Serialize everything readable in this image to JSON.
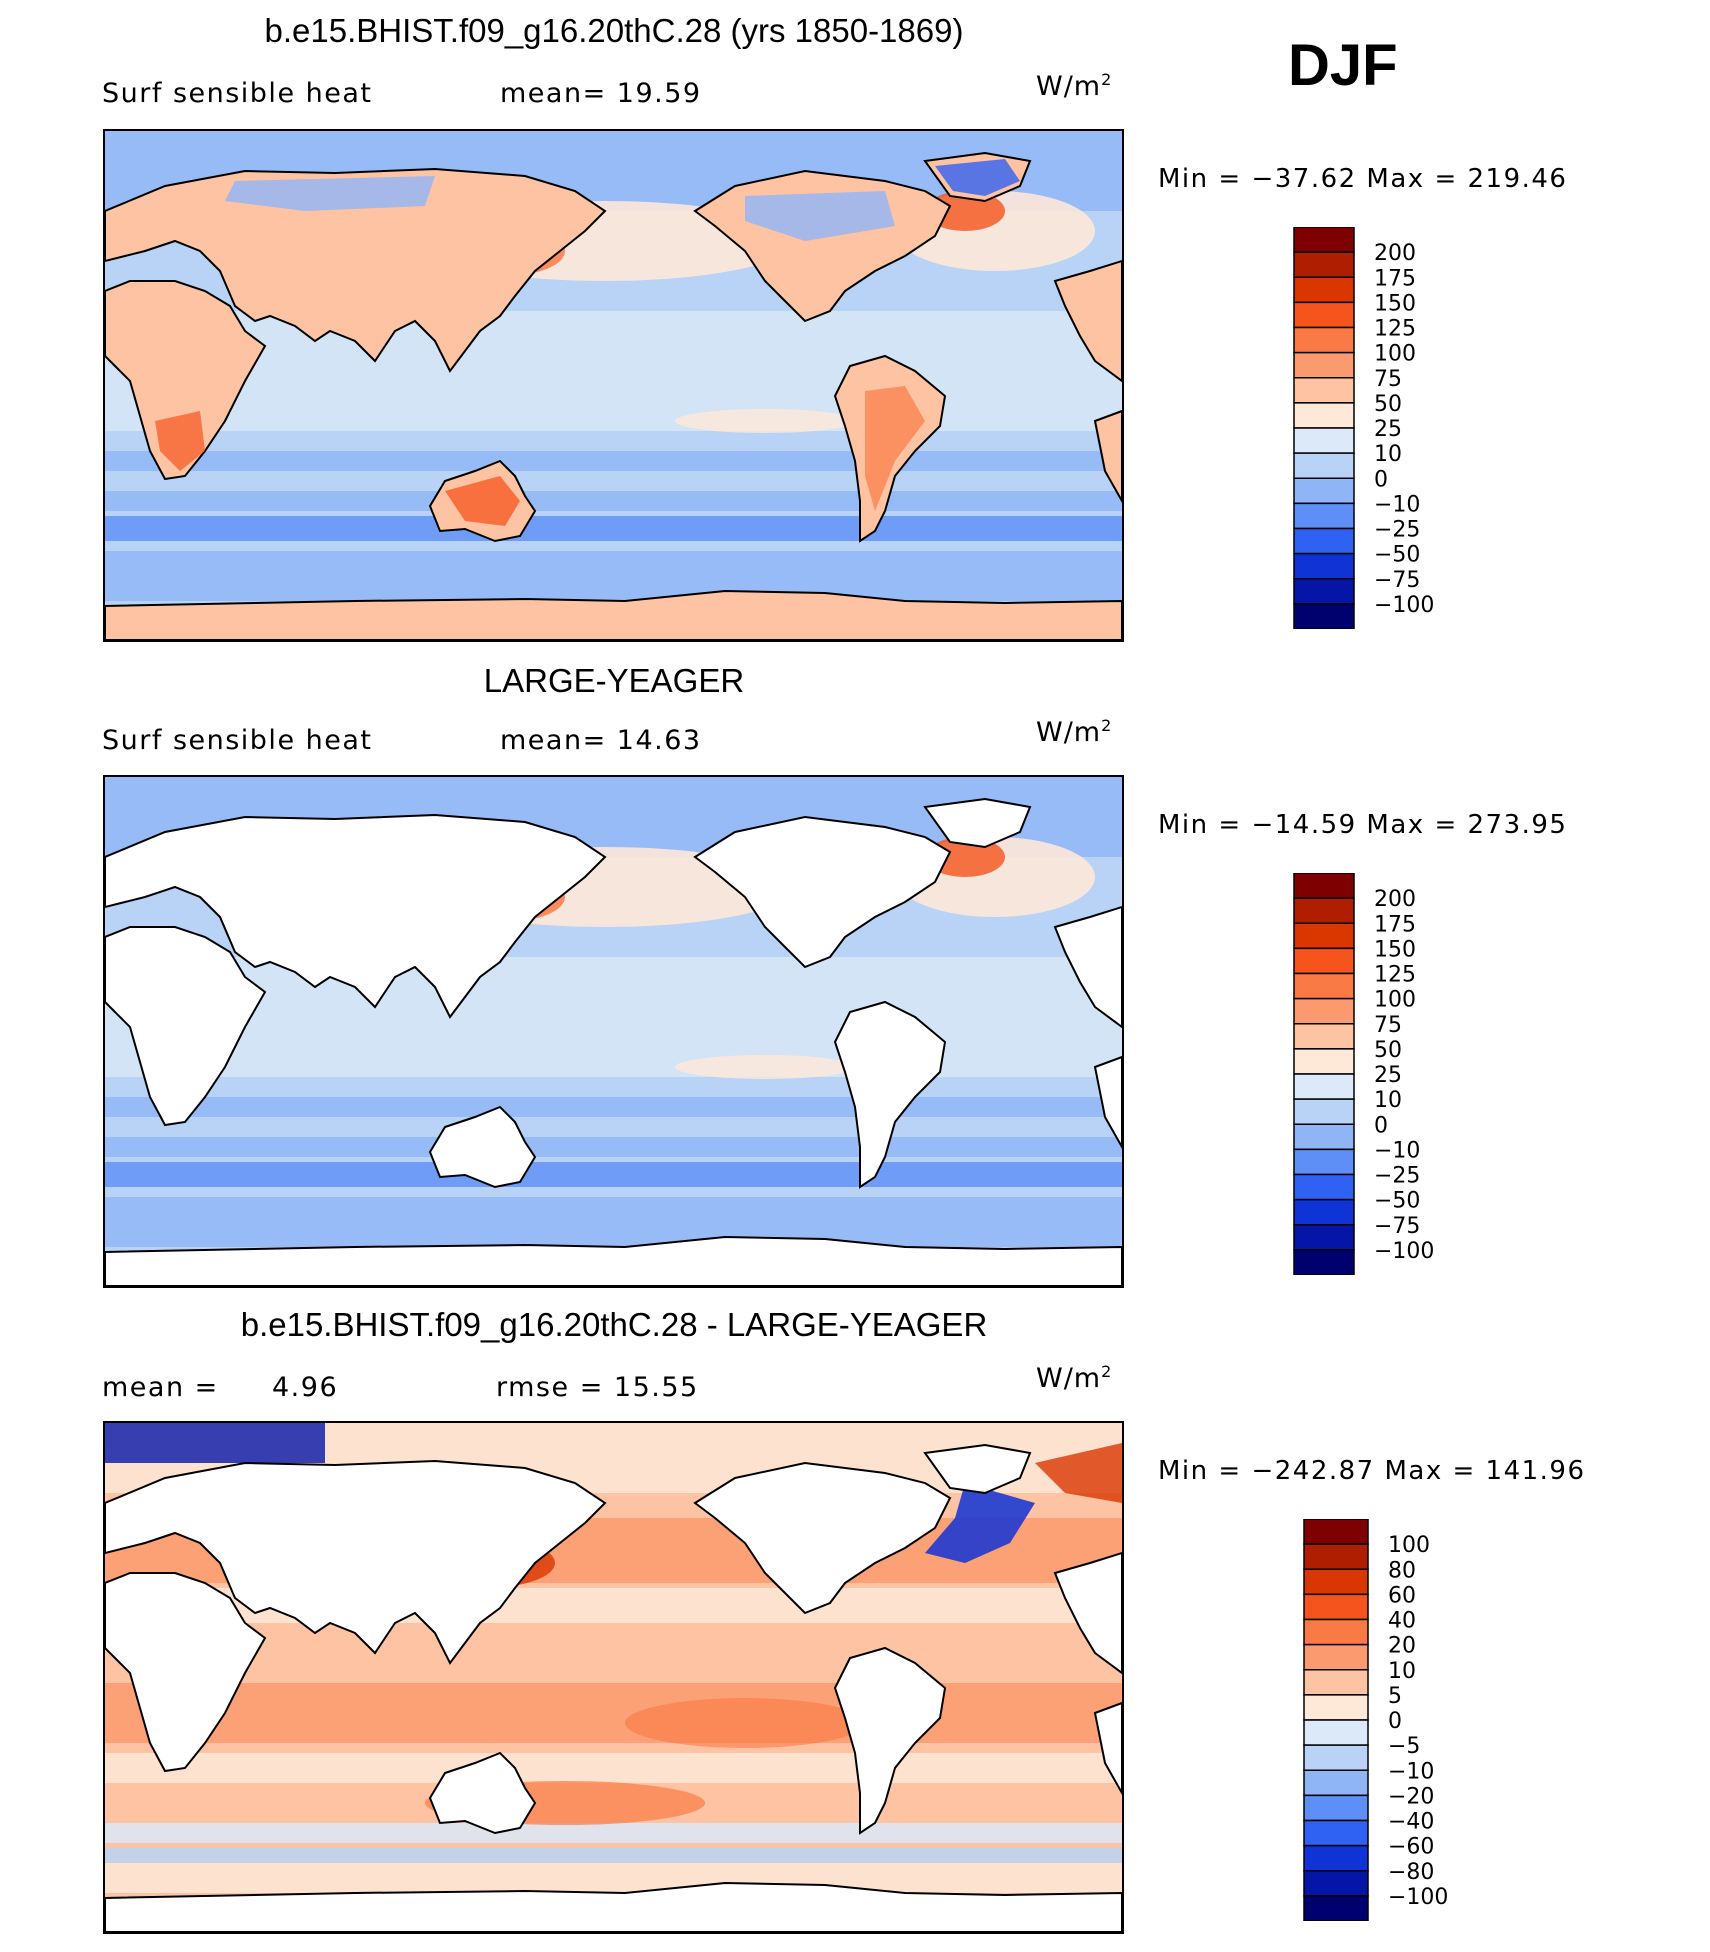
{
  "season": "DJF",
  "units_label": "W/m",
  "units_exp": "2",
  "panels": [
    {
      "title": "b.e15.BHIST.f09_g16.20thC.28 (yrs 1850-1869)",
      "variable": "Surf  sensible  heat",
      "stat1": "mean=   19.59",
      "stat2": "",
      "minmax": "Min  =  −37.62  Max  =  219.46",
      "land_style": "model"
    },
    {
      "title": "LARGE-YEAGER",
      "variable": "Surf  sensible  heat",
      "stat1": "mean=   14.63",
      "stat2": "",
      "minmax": "Min  =  −14.59  Max  =  273.95",
      "land_style": "obs"
    },
    {
      "title": "b.e15.BHIST.f09_g16.20thC.28 - LARGE-YEAGER",
      "variable": "mean  =",
      "stat1": "4.96",
      "stat2": "rmse  =    15.55",
      "minmax": "Min  =  −242.87  Max  =  141.96",
      "land_style": "diff"
    }
  ],
  "colorbars": {
    "main": {
      "levels": [
        "200",
        "175",
        "150",
        "125",
        "100",
        "75",
        "50",
        "25",
        "10",
        "0",
        "−10",
        "−25",
        "−50",
        "−75",
        "−100"
      ],
      "colors": [
        "#7f0000",
        "#b01e00",
        "#d93600",
        "#f5541c",
        "#fa7a45",
        "#fb9a6e",
        "#fdc3a3",
        "#fee8d8",
        "#dbe9f8",
        "#b8d3f6",
        "#8fb5f7",
        "#5d8ff7",
        "#2f62f2",
        "#1033d6",
        "#0515a8",
        "#00006e"
      ]
    },
    "diff": {
      "levels": [
        "100",
        "80",
        "60",
        "40",
        "20",
        "10",
        "5",
        "0",
        "−5",
        "−10",
        "−20",
        "−40",
        "−60",
        "−80",
        "−100"
      ],
      "colors": [
        "#7f0000",
        "#b01e00",
        "#d93600",
        "#f5541c",
        "#fa7a45",
        "#fb9a6e",
        "#fdc3a3",
        "#fee8d8",
        "#dbe9f8",
        "#b8d3f6",
        "#8fb5f7",
        "#5d8ff7",
        "#2f62f2",
        "#1033d6",
        "#0515a8",
        "#00006e"
      ]
    }
  },
  "chart_data": [
    {
      "type": "heatmap",
      "title": "b.e15.BHIST.f09_g16.20thC.28 (yrs 1850-1869)",
      "variable": "Surf sensible heat",
      "units": "W/m2",
      "season": "DJF",
      "mean": 19.59,
      "min": -37.62,
      "max": 219.46,
      "contour_levels": [
        -100,
        -75,
        -50,
        -25,
        -10,
        0,
        10,
        25,
        50,
        75,
        100,
        125,
        150,
        175,
        200
      ],
      "projection": "cylindrical equidistant, Pacific-centered"
    },
    {
      "type": "heatmap",
      "title": "LARGE-YEAGER",
      "variable": "Surf sensible heat",
      "units": "W/m2",
      "season": "DJF",
      "mean": 14.63,
      "min": -14.59,
      "max": 273.95,
      "contour_levels": [
        -100,
        -75,
        -50,
        -25,
        -10,
        0,
        10,
        25,
        50,
        75,
        100,
        125,
        150,
        175,
        200
      ],
      "land": "masked (ocean only)"
    },
    {
      "type": "heatmap",
      "title": "b.e15.BHIST.f09_g16.20thC.28 - LARGE-YEAGER",
      "units": "W/m2",
      "season": "DJF",
      "mean": 4.96,
      "rmse": 15.55,
      "min": -242.87,
      "max": 141.96,
      "contour_levels": [
        -100,
        -80,
        -60,
        -40,
        -20,
        -10,
        -5,
        0,
        5,
        10,
        20,
        40,
        60,
        80,
        100
      ],
      "land": "masked (ocean only)"
    }
  ]
}
